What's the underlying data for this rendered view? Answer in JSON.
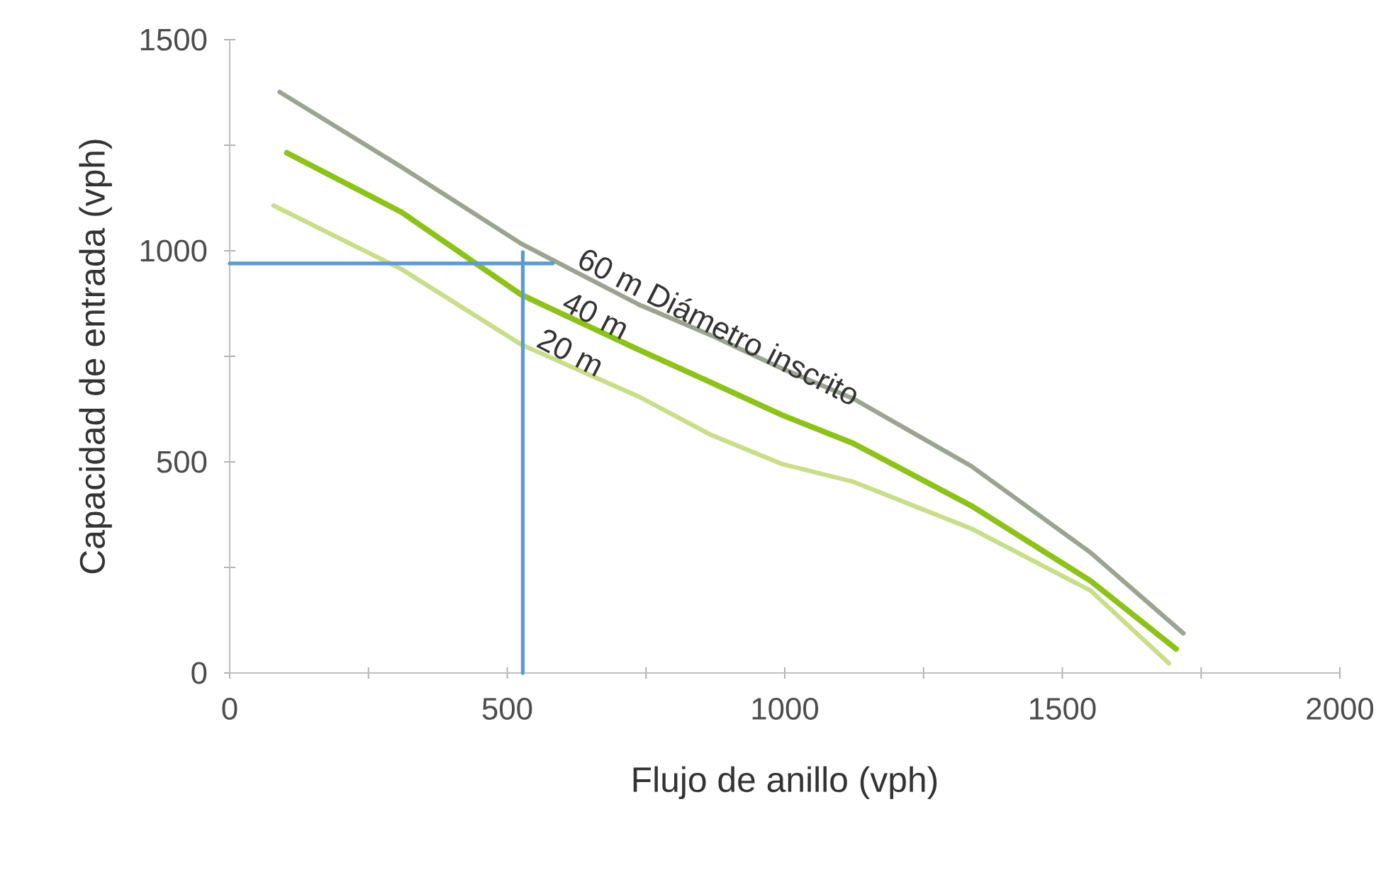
{
  "chart_data": {
    "type": "line",
    "xlabel": "Flujo de anillo (vph)",
    "ylabel": "Capacidad de entrada  (vph)",
    "xlim": [
      0,
      2000
    ],
    "ylim": [
      0,
      1500
    ],
    "xticks": [
      0,
      {
        "value": 250,
        "label": null
      },
      500,
      {
        "value": 750,
        "label": null
      },
      1000,
      {
        "value": 1250,
        "label": null
      },
      1500,
      {
        "value": 1750,
        "label": null
      },
      2000
    ],
    "yticks": [
      0,
      {
        "value": 250,
        "label": null
      },
      500,
      {
        "value": 750,
        "label": null
      },
      1000,
      {
        "value": 1250,
        "label": null
      },
      1500
    ],
    "series": [
      {
        "name": "60 m Diámetro inscrito",
        "color": "#9aa58f",
        "x": [
          90,
          310,
          525,
          738,
          867,
          995,
          1123,
          1336,
          1551,
          1718
        ],
        "values": [
          1376,
          1198,
          1017,
          872,
          800,
          721,
          650,
          490,
          285,
          94
        ]
      },
      {
        "name": "40 m",
        "color": "#8cc21a",
        "x": [
          103,
          310,
          525,
          738,
          867,
          995,
          1123,
          1336,
          1551,
          1705
        ],
        "values": [
          1232,
          1091,
          896,
          765,
          688,
          611,
          544,
          396,
          218,
          57
        ]
      },
      {
        "name": "20 m",
        "color": "#c8de8a",
        "x": [
          79,
          310,
          525,
          738,
          867,
          995,
          1123,
          1336,
          1551,
          1692
        ],
        "values": [
          1107,
          956,
          778,
          654,
          564,
          495,
          453,
          342,
          195,
          23
        ]
      },
      {
        "color": "#5b9bd5",
        "x": [
          0,
          582
        ],
        "values": [
          970,
          970
        ]
      },
      {
        "color": "#5b9bd5",
        "x": [
          528,
          528
        ],
        "values": [
          0,
          997
        ]
      }
    ]
  }
}
